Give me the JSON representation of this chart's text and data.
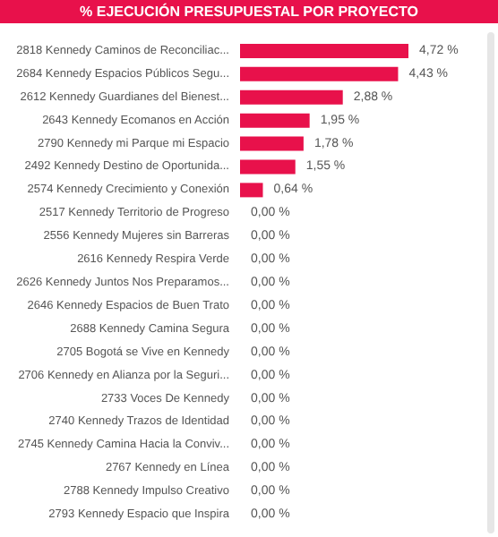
{
  "chart_data": {
    "type": "bar",
    "orientation": "horizontal",
    "title": "% EJECUCIÓN PRESUPUESTAL POR PROYECTO",
    "categories": [
      "2818 Kennedy Caminos de Reconciliac...",
      "2684 Kennedy Espacios Públicos Segu...",
      "2612 Kennedy Guardianes del Bienest...",
      "2643 Kennedy Ecomanos en Acción",
      "2790 Kennedy mi Parque mi Espacio",
      "2492 Kennedy Destino de Oportunida...",
      "2574 Kennedy Crecimiento y Conexión",
      "2517 Kennedy Territorio de Progreso",
      "2556 Kennedy Mujeres sin Barreras",
      "2616 Kennedy Respira Verde",
      "2626 Kennedy Juntos Nos Preparamos...",
      "2646 Kennedy Espacios de Buen Trato",
      "2688 Kennedy Camina Segura",
      "2705 Bogotá se Vive en Kennedy",
      "2706 Kennedy en Alianza por la Seguri...",
      "2733 Voces De Kennedy",
      "2740 Kennedy Trazos de Identidad",
      "2745 Kennedy Camina Hacia la Conviv...",
      "2767 Kennedy en Línea",
      "2788 Kennedy Impulso Creativo",
      "2793 Kennedy Espacio que Inspira"
    ],
    "values": [
      4.72,
      4.43,
      2.88,
      1.95,
      1.78,
      1.55,
      0.64,
      0,
      0,
      0,
      0,
      0,
      0,
      0,
      0,
      0,
      0,
      0,
      0,
      0,
      0
    ],
    "value_labels": [
      "4,72 %",
      "4,43 %",
      "2,88 %",
      "1,95 %",
      "1,78 %",
      "1,55 %",
      "0,64 %",
      "0,00 %",
      "0,00 %",
      "0,00 %",
      "0,00 %",
      "0,00 %",
      "0,00 %",
      "0,00 %",
      "0,00 %",
      "0,00 %",
      "0,00 %",
      "0,00 %",
      "0,00 %",
      "0,00 %",
      "0,00 %"
    ],
    "color": "#e8114b",
    "tick_labels": "y"
  }
}
